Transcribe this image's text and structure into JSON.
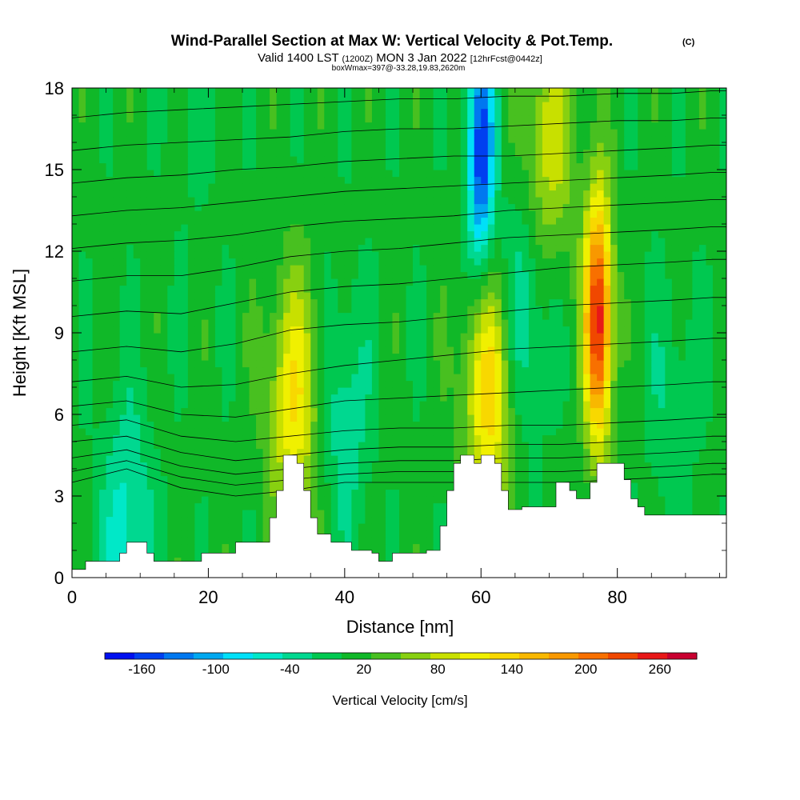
{
  "header": {
    "title": "Wind-Parallel Section at Max W: Vertical Velocity & Pot.Temp.",
    "copyright": "(C)",
    "valid_prefix": "Valid 1400 LST",
    "valid_utc": "(1200Z)",
    "valid_date": "MON 3 Jan 2022",
    "forecast": "[12hrFcst@0442z]",
    "box_info": "boxWmax=397@-33.28,19.83,2620m"
  },
  "colorbar": {
    "label": "Vertical Velocity [cm/s]",
    "colors": [
      "#0010f0",
      "#0040f0",
      "#0078f0",
      "#00a8f0",
      "#00e0f8",
      "#00e8c8",
      "#00d890",
      "#00c850",
      "#10b828",
      "#48c020",
      "#88d010",
      "#c8e000",
      "#f0f000",
      "#f8d800",
      "#f8b800",
      "#f89800",
      "#f87000",
      "#f04800",
      "#e81818",
      "#c80030"
    ],
    "tick_labels": [
      "-160",
      "-100",
      "-40",
      "20",
      "80",
      "140",
      "200",
      "260"
    ],
    "tick_values": [
      -160,
      -100,
      -40,
      20,
      80,
      140,
      200,
      260
    ],
    "vmin": -190,
    "vmax": 290
  },
  "chart_data": {
    "type": "heatmap",
    "xlabel": "Distance [nm]",
    "ylabel": "Height [Kft MSL]",
    "xlim": [
      0,
      96
    ],
    "ylim": [
      0,
      18
    ],
    "x_ticks": [
      0,
      20,
      40,
      60,
      80
    ],
    "y_ticks": [
      0,
      3,
      6,
      9,
      12,
      15,
      18
    ],
    "variable": "Vertical Velocity [cm/s]",
    "terrain_height_kft": [
      [
        0,
        0.3
      ],
      [
        2,
        0.6
      ],
      [
        6,
        0.6
      ],
      [
        7,
        0.9
      ],
      [
        8,
        1.3
      ],
      [
        10,
        1.3
      ],
      [
        11,
        0.9
      ],
      [
        12,
        0.6
      ],
      [
        18,
        0.6
      ],
      [
        19,
        0.9
      ],
      [
        23,
        0.9
      ],
      [
        24,
        1.3
      ],
      [
        28,
        1.3
      ],
      [
        29,
        2.2
      ],
      [
        30,
        3.2
      ],
      [
        31,
        4.5
      ],
      [
        33,
        4.2
      ],
      [
        34,
        3.2
      ],
      [
        35,
        2.2
      ],
      [
        36,
        1.6
      ],
      [
        38,
        1.3
      ],
      [
        40,
        1.3
      ],
      [
        41,
        1.0
      ],
      [
        44,
        0.9
      ],
      [
        45,
        0.6
      ],
      [
        47,
        0.9
      ],
      [
        50,
        0.9
      ],
      [
        52,
        1.0
      ],
      [
        54,
        1.9
      ],
      [
        55,
        3.2
      ],
      [
        56,
        4.2
      ],
      [
        57,
        4.5
      ],
      [
        59,
        4.2
      ],
      [
        60,
        4.5
      ],
      [
        62,
        4.2
      ],
      [
        63,
        3.2
      ],
      [
        64,
        2.5
      ],
      [
        66,
        2.6
      ],
      [
        70,
        2.6
      ],
      [
        71,
        3.5
      ],
      [
        73,
        3.2
      ],
      [
        74,
        2.9
      ],
      [
        76,
        3.5
      ],
      [
        77,
        4.2
      ],
      [
        80,
        4.2
      ],
      [
        81,
        3.6
      ],
      [
        82,
        2.9
      ],
      [
        83,
        2.6
      ],
      [
        84,
        2.3
      ],
      [
        96,
        2.3
      ]
    ],
    "vertical_velocity_features_cm_s": [
      {
        "x": 32.5,
        "y": 6.5,
        "value": 120
      },
      {
        "x": 61.2,
        "y": 7.0,
        "value": 140
      },
      {
        "x": 77.2,
        "y": 9.5,
        "value": 260
      },
      {
        "x": 60.0,
        "y": 15.5,
        "value": -160
      },
      {
        "x": 70.0,
        "y": 16.0,
        "value": 90
      },
      {
        "x": 40.0,
        "y": 6.0,
        "value": -40
      },
      {
        "x": 66.0,
        "y": 9.5,
        "value": -50
      },
      {
        "x": 8.0,
        "y": 1.8,
        "value": -60
      },
      {
        "x": 18.0,
        "y": 16.0,
        "value": 0
      },
      {
        "x": 88.0,
        "y": 6.5,
        "value": -20
      }
    ],
    "theta_contours_kft": [
      [
        3.5,
        4.0,
        3.3,
        3.0,
        3.2,
        3.5,
        3.5,
        3.5,
        3.5,
        3.5,
        3.6,
        3.7,
        3.8,
        3.8
      ],
      [
        3.9,
        4.3,
        3.7,
        3.4,
        3.6,
        3.8,
        3.9,
        3.9,
        3.9,
        3.9,
        4.0,
        4.1,
        4.2,
        4.2
      ],
      [
        4.4,
        4.7,
        4.1,
        3.8,
        4.0,
        4.2,
        4.3,
        4.3,
        4.4,
        4.4,
        4.5,
        4.6,
        4.7,
        4.7
      ],
      [
        5.0,
        5.2,
        4.6,
        4.3,
        4.5,
        4.7,
        4.8,
        4.8,
        4.9,
        4.9,
        5.0,
        5.1,
        5.2,
        5.2
      ],
      [
        5.6,
        5.8,
        5.2,
        5.0,
        5.2,
        5.4,
        5.5,
        5.5,
        5.6,
        5.6,
        5.7,
        5.8,
        5.9,
        5.9
      ],
      [
        6.3,
        6.5,
        6.0,
        5.9,
        6.2,
        6.5,
        6.6,
        6.7,
        6.8,
        6.9,
        7.0,
        7.1,
        7.2,
        7.2
      ],
      [
        7.2,
        7.4,
        7.0,
        7.1,
        7.5,
        7.8,
        8.0,
        8.2,
        8.4,
        8.5,
        8.6,
        8.7,
        8.8,
        8.8
      ],
      [
        8.3,
        8.5,
        8.3,
        8.6,
        9.1,
        9.3,
        9.4,
        9.6,
        9.8,
        10.0,
        10.1,
        10.2,
        10.3,
        10.3
      ],
      [
        9.6,
        9.8,
        9.7,
        10.1,
        10.5,
        10.7,
        10.8,
        11.0,
        11.2,
        11.4,
        11.5,
        11.6,
        11.7,
        11.7
      ],
      [
        10.9,
        11.1,
        11.1,
        11.4,
        11.8,
        12.0,
        12.1,
        12.3,
        12.5,
        12.6,
        12.7,
        12.8,
        12.9,
        12.9
      ],
      [
        12.1,
        12.3,
        12.4,
        12.6,
        12.9,
        13.1,
        13.2,
        13.3,
        13.5,
        13.6,
        13.7,
        13.8,
        13.9,
        13.9
      ],
      [
        13.3,
        13.5,
        13.6,
        13.8,
        14.0,
        14.2,
        14.3,
        14.4,
        14.5,
        14.6,
        14.7,
        14.8,
        14.9,
        14.9
      ],
      [
        14.5,
        14.7,
        14.8,
        15.0,
        15.1,
        15.3,
        15.4,
        15.5,
        15.5,
        15.6,
        15.7,
        15.8,
        15.9,
        15.9
      ],
      [
        15.7,
        15.9,
        16.0,
        16.1,
        16.2,
        16.4,
        16.5,
        16.5,
        16.6,
        16.7,
        16.8,
        16.8,
        16.9,
        16.9
      ],
      [
        16.9,
        17.1,
        17.2,
        17.3,
        17.4,
        17.5,
        17.6,
        17.6,
        17.7,
        17.7,
        17.8,
        17.8,
        17.9,
        17.9
      ]
    ],
    "theta_contour_x_nm": [
      0,
      8,
      16,
      24,
      32,
      40,
      48,
      56,
      64,
      72,
      80,
      88,
      94,
      96
    ]
  }
}
